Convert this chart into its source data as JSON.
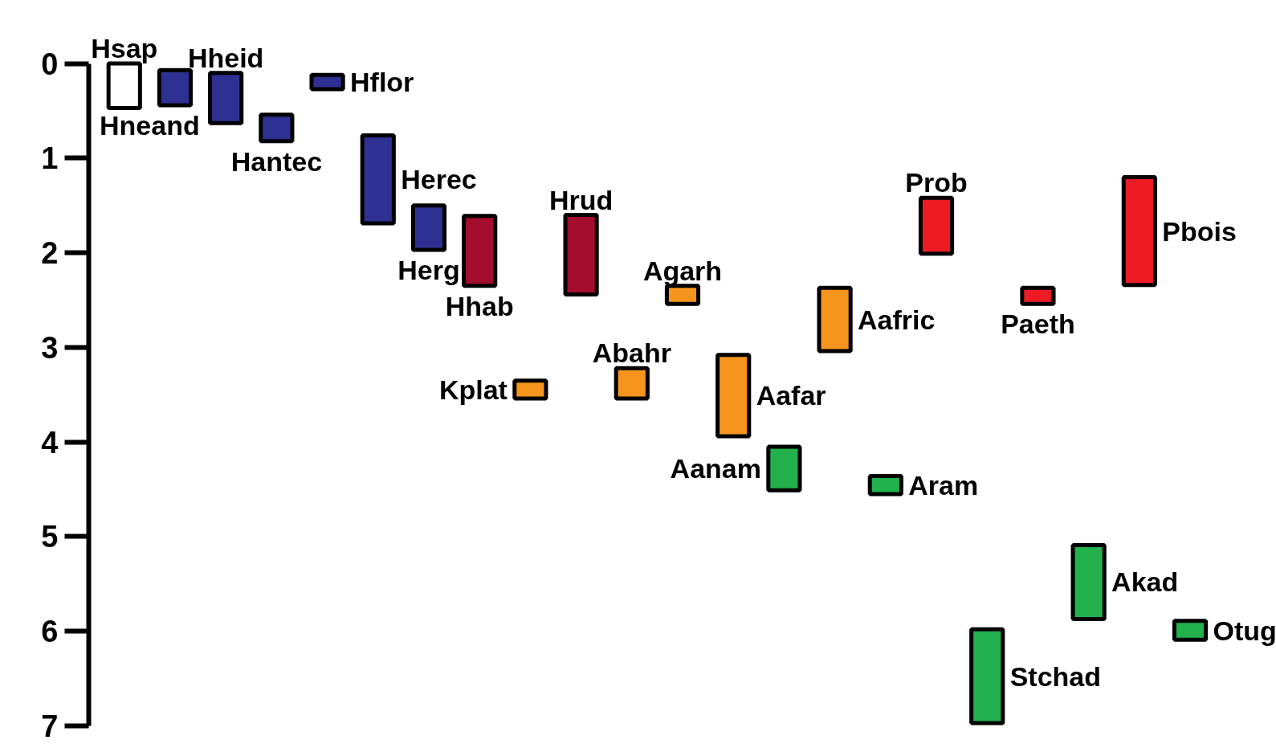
{
  "chart_data": {
    "type": "bar",
    "grid": false,
    "ylim": [
      7,
      0
    ],
    "yticks": [
      0,
      1,
      2,
      3,
      4,
      5,
      6,
      7
    ],
    "categories": [
      null,
      null,
      null,
      null,
      null,
      null,
      null,
      null,
      null,
      null,
      null,
      null,
      null,
      null,
      null,
      null,
      null,
      null,
      null,
      null,
      null,
      null
    ],
    "annotations": [
      "Hsap",
      "Hneand",
      "Hheid",
      "Hantec",
      "Hflor",
      "Herec",
      "Herg",
      "Hhab",
      "Kplat",
      "Hrud",
      "Abahr",
      "Agarh",
      "Aafar",
      "Aanam",
      "Aafric",
      "Aram",
      "Prob",
      "Stchad",
      "Paeth",
      "Akad",
      "Pbois",
      "Otug"
    ],
    "base": [
      0,
      0.07,
      0.1,
      0.54,
      0.12,
      0.76,
      1.5,
      1.61,
      3.35,
      1.6,
      3.22,
      2.35,
      3.08,
      4.05,
      2.37,
      4.36,
      1.42,
      5.98,
      2.37,
      5.09,
      1.2,
      5.89
    ],
    "values": [
      0.47,
      0.37,
      0.53,
      0.28,
      0.15,
      0.93,
      0.47,
      0.74,
      0.19,
      0.84,
      0.32,
      0.19,
      0.86,
      0.46,
      0.67,
      0.19,
      0.59,
      0.99,
      0.17,
      0.78,
      1.14,
      0.2
    ],
    "colors": [
      "#ffffff",
      "#2e3192",
      "#2e3192",
      "#2e3192",
      "#2e3192",
      "#2e3192",
      "#2e3192",
      "#a50d2c",
      "#f7941d",
      "#a50d2c",
      "#f7941d",
      "#f7941d",
      "#f7941d",
      "#22b14c",
      "#f7941d",
      "#22b14c",
      "#ed1c24",
      "#22b14c",
      "#ed1c24",
      "#22b14c",
      "#ed1c24",
      "#22b14c"
    ]
  }
}
